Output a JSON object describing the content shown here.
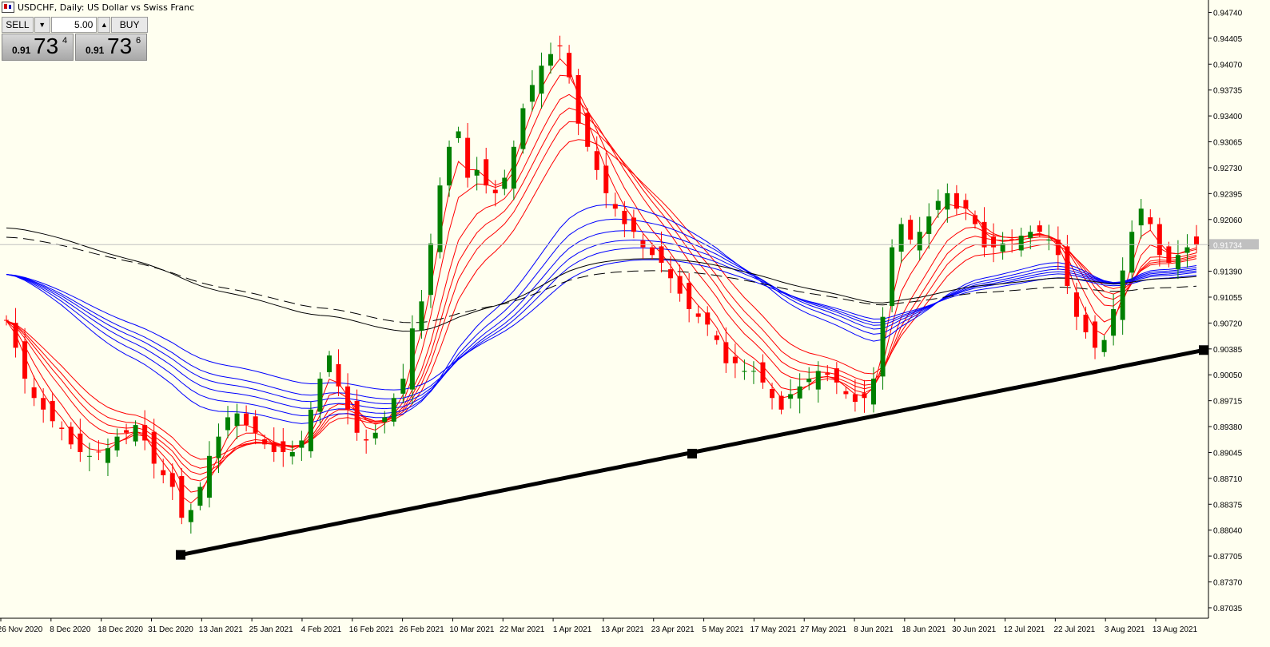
{
  "window": {
    "title": "USDCHF, Daily:  US Dollar vs Swiss Franc"
  },
  "trade_panel": {
    "sell_label": "SELL",
    "buy_label": "BUY",
    "lot_value": "5.00",
    "bid": {
      "big": "0.91",
      "main": "73",
      "sup": "4"
    },
    "ask": {
      "big": "0.91",
      "main": "73",
      "sup": "6"
    }
  },
  "colors": {
    "background": "#fffff0",
    "bull": "#008000",
    "bear": "#ff0000",
    "fast_ma": "#ff0000",
    "slow_ma": "#0000ff",
    "long_ma": "#000000",
    "trendline": "#000000"
  },
  "chart_data": {
    "type": "candlestick",
    "symbol": "USDCHF",
    "timeframe": "Daily",
    "ylim": [
      0.869,
      0.949
    ],
    "y_ticks": [
      "0.94740",
      "0.94405",
      "0.94070",
      "0.93735",
      "0.93400",
      "0.93065",
      "0.92730",
      "0.92395",
      "0.92060",
      "0.91725",
      "0.91390",
      "0.91055",
      "0.90720",
      "0.90385",
      "0.90050",
      "0.89715",
      "0.89380",
      "0.89045",
      "0.88710",
      "0.88375",
      "0.88040",
      "0.87705",
      "0.87370",
      "0.87035"
    ],
    "x_ticks": [
      "26 Nov 2020",
      "8 Dec 2020",
      "18 Dec 2020",
      "31 Dec 2020",
      "13 Jan 2021",
      "25 Jan 2021",
      "4 Feb 2021",
      "16 Feb 2021",
      "26 Feb 2021",
      "10 Mar 2021",
      "22 Mar 2021",
      "1 Apr 2021",
      "13 Apr 2021",
      "23 Apr 2021",
      "5 May 2021",
      "17 May 2021",
      "27 May 2021",
      "8 Jun 2021",
      "18 Jun 2021",
      "30 Jun 2021",
      "12 Jul 2021",
      "22 Jul 2021",
      "3 Aug 2021",
      "13 Aug 2021"
    ],
    "current_price": "0.91734",
    "close_path": [
      0.9075,
      0.904,
      0.9,
      0.8975,
      0.896,
      0.8945,
      0.8935,
      0.8915,
      0.8905,
      0.89,
      0.8905,
      0.891,
      0.8925,
      0.893,
      0.894,
      0.892,
      0.889,
      0.8875,
      0.886,
      0.882,
      0.883,
      0.886,
      0.89,
      0.8925,
      0.895,
      0.8955,
      0.894,
      0.893,
      0.8915,
      0.8905,
      0.8905,
      0.8905,
      0.892,
      0.896,
      0.9,
      0.903,
      0.899,
      0.896,
      0.893,
      0.892,
      0.893,
      0.895,
      0.8975,
      0.9,
      0.9065,
      0.91,
      0.9175,
      0.925,
      0.93,
      0.932,
      0.926,
      0.927,
      0.925,
      0.924,
      0.926,
      0.93,
      0.935,
      0.938,
      0.9405,
      0.942,
      0.943,
      0.939,
      0.933,
      0.93,
      0.927,
      0.924,
      0.922,
      0.92,
      0.919,
      0.917,
      0.916,
      0.915,
      0.913,
      0.911,
      0.909,
      0.908,
      0.907,
      0.905,
      0.902,
      0.902,
      0.901,
      0.901,
      0.8995,
      0.8975,
      0.896,
      0.898,
      0.899,
      0.9,
      0.901,
      0.9005,
      0.8995,
      0.898,
      0.897,
      0.8975,
      0.9,
      0.908,
      0.917,
      0.92,
      0.918,
      0.919,
      0.921,
      0.923,
      0.924,
      0.922,
      0.922,
      0.92,
      0.917,
      0.917,
      0.9175,
      0.918,
      0.9185,
      0.919,
      0.919,
      0.918,
      0.916,
      0.912,
      0.908,
      0.906,
      0.904,
      0.905,
      0.909,
      0.914,
      0.919,
      0.922,
      0.92,
      0.916,
      0.915,
      0.916,
      0.917,
      0.9173
    ],
    "trendline": {
      "points": [
        {
          "date": "31 Dec 2020",
          "price": 0.8772
        },
        {
          "date": "30 Apr 2021",
          "price": 0.8903
        },
        {
          "date": "20 Aug 2021",
          "price": 0.9037
        }
      ]
    }
  }
}
